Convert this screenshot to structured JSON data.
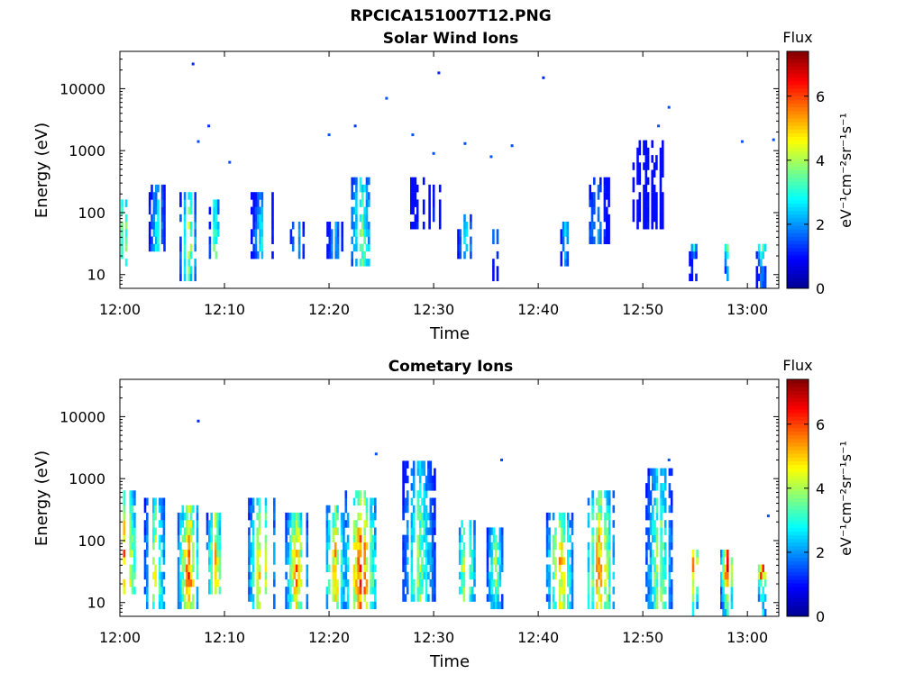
{
  "figure": {
    "title": "RPCICA151007T12.PNG"
  },
  "colors": {
    "colormap": [
      "#00008f",
      "#0000ff",
      "#0080ff",
      "#00ffff",
      "#80ff80",
      "#ffff00",
      "#ff8000",
      "#ff0000",
      "#800000"
    ]
  },
  "chart_data": [
    {
      "type": "heatmap",
      "title": "Solar Wind Ions",
      "xlabel": "Time",
      "ylabel": "Energy (eV)",
      "xlim": [
        "12:00",
        "13:03"
      ],
      "xticks": [
        "12:00",
        "12:10",
        "12:20",
        "12:30",
        "12:40",
        "12:50",
        "13:00"
      ],
      "y_scale": "log",
      "ylim": [
        6,
        40000
      ],
      "yticks": [
        "10",
        "100",
        "1000",
        "10000"
      ],
      "colorbar": {
        "label": "Flux",
        "unit": "eV⁻¹cm⁻²sr⁻¹s⁻¹",
        "range": [
          0,
          7.4
        ],
        "ticks": [
          "0",
          "2",
          "4",
          "6"
        ]
      },
      "bursts": [
        {
          "t": 0.3,
          "w": 1.2,
          "emin": 12,
          "emax": 180,
          "peak": 4.8
        },
        {
          "t": 3.5,
          "w": 1.5,
          "emin": 25,
          "emax": 280,
          "peak": 3.2
        },
        {
          "t": 6.5,
          "w": 1.6,
          "emin": 8,
          "emax": 200,
          "peak": 4.5
        },
        {
          "t": 9.0,
          "w": 1.0,
          "emin": 20,
          "emax": 180,
          "peak": 4.0
        },
        {
          "t": 13.5,
          "w": 2.0,
          "emin": 20,
          "emax": 200,
          "peak": 3.0
        },
        {
          "t": 16.8,
          "w": 1.5,
          "emin": 20,
          "emax": 70,
          "peak": 2.7
        },
        {
          "t": 20.5,
          "w": 1.5,
          "emin": 20,
          "emax": 70,
          "peak": 2.7
        },
        {
          "t": 23.0,
          "w": 2.2,
          "emin": 15,
          "emax": 400,
          "peak": 4.0
        },
        {
          "t": 28.5,
          "w": 1.5,
          "emin": 60,
          "emax": 400,
          "peak": 1.5
        },
        {
          "t": 30.0,
          "w": 1.0,
          "emin": 60,
          "emax": 300,
          "peak": 1.5
        },
        {
          "t": 33.0,
          "w": 1.5,
          "emin": 20,
          "emax": 100,
          "peak": 3.0
        },
        {
          "t": 35.8,
          "w": 0.8,
          "emin": 7,
          "emax": 50,
          "peak": 2.5
        },
        {
          "t": 42.5,
          "w": 0.8,
          "emin": 15,
          "emax": 70,
          "peak": 3.0
        },
        {
          "t": 45.5,
          "w": 2.5,
          "emin": 30,
          "emax": 350,
          "peak": 2.3
        },
        {
          "t": 50.5,
          "w": 3.0,
          "emin": 60,
          "emax": 1500,
          "peak": 1.2
        },
        {
          "t": 54.8,
          "w": 0.8,
          "emin": 8,
          "emax": 30,
          "peak": 3.5
        },
        {
          "t": 58.0,
          "w": 0.8,
          "emin": 8,
          "emax": 35,
          "peak": 4.8
        },
        {
          "t": 61.3,
          "w": 1.0,
          "emin": 6,
          "emax": 35,
          "peak": 4.8
        }
      ],
      "points": [
        {
          "t": 7.0,
          "e": 25000,
          "v": 1.2
        },
        {
          "t": 30.5,
          "e": 18000,
          "v": 1.2
        },
        {
          "t": 40.5,
          "e": 15000,
          "v": 1.2
        },
        {
          "t": 25.5,
          "e": 7000,
          "v": 1.5
        },
        {
          "t": 52.5,
          "e": 5000,
          "v": 1.5
        },
        {
          "t": 8.5,
          "e": 2500,
          "v": 1.3
        },
        {
          "t": 22.5,
          "e": 2500,
          "v": 1.3
        },
        {
          "t": 51.5,
          "e": 2500,
          "v": 1.5
        },
        {
          "t": 20.0,
          "e": 1800,
          "v": 1.5
        },
        {
          "t": 28.0,
          "e": 1800,
          "v": 1.5
        },
        {
          "t": 7.5,
          "e": 1400,
          "v": 1.5
        },
        {
          "t": 33.0,
          "e": 1300,
          "v": 1.5
        },
        {
          "t": 37.5,
          "e": 1200,
          "v": 1.5
        },
        {
          "t": 59.5,
          "e": 1400,
          "v": 1.5
        },
        {
          "t": 62.5,
          "e": 1500,
          "v": 1.5
        },
        {
          "t": 35.5,
          "e": 800,
          "v": 1.5
        },
        {
          "t": 30.0,
          "e": 900,
          "v": 1.5
        },
        {
          "t": 10.5,
          "e": 650,
          "v": 1.5
        }
      ]
    },
    {
      "type": "heatmap",
      "title": "Cometary Ions",
      "xlabel": "Time",
      "ylabel": "Energy (eV)",
      "xlim": [
        "12:00",
        "13:03"
      ],
      "xticks": [
        "12:00",
        "12:10",
        "12:20",
        "12:30",
        "12:40",
        "12:50",
        "13:00"
      ],
      "y_scale": "log",
      "ylim": [
        6,
        40000
      ],
      "yticks": [
        "10",
        "100",
        "1000",
        "10000"
      ],
      "colorbar": {
        "label": "Flux",
        "unit": "eV⁻¹cm⁻²sr⁻¹s⁻¹",
        "range": [
          0,
          7.4
        ],
        "ticks": [
          "0",
          "2",
          "4",
          "6"
        ]
      },
      "bursts": [
        {
          "t": 0.5,
          "w": 2.0,
          "emin": 12,
          "emax": 600,
          "peak": 6.8
        },
        {
          "t": 3.3,
          "w": 2.0,
          "emin": 7,
          "emax": 500,
          "peak": 4.8
        },
        {
          "t": 6.5,
          "w": 2.0,
          "emin": 7,
          "emax": 400,
          "peak": 6.2
        },
        {
          "t": 9.0,
          "w": 1.5,
          "emin": 12,
          "emax": 300,
          "peak": 5.8
        },
        {
          "t": 13.5,
          "w": 2.5,
          "emin": 7,
          "emax": 500,
          "peak": 5.5
        },
        {
          "t": 16.8,
          "w": 2.0,
          "emin": 7,
          "emax": 300,
          "peak": 5.8
        },
        {
          "t": 20.5,
          "w": 2.0,
          "emin": 8,
          "emax": 400,
          "peak": 5.5
        },
        {
          "t": 23.0,
          "w": 3.0,
          "emin": 8,
          "emax": 600,
          "peak": 6.5
        },
        {
          "t": 28.5,
          "w": 3.0,
          "emin": 10,
          "emax": 2000,
          "peak": 4.2
        },
        {
          "t": 33.0,
          "w": 2.0,
          "emin": 10,
          "emax": 200,
          "peak": 5.0
        },
        {
          "t": 35.8,
          "w": 1.5,
          "emin": 7,
          "emax": 150,
          "peak": 4.5
        },
        {
          "t": 42.0,
          "w": 2.5,
          "emin": 7,
          "emax": 300,
          "peak": 5.5
        },
        {
          "t": 45.8,
          "w": 3.0,
          "emin": 8,
          "emax": 600,
          "peak": 5.8
        },
        {
          "t": 51.5,
          "w": 2.5,
          "emin": 8,
          "emax": 1500,
          "peak": 4.5
        },
        {
          "t": 54.8,
          "w": 1.0,
          "emin": 6,
          "emax": 80,
          "peak": 6.5
        },
        {
          "t": 58.0,
          "w": 1.2,
          "emin": 6,
          "emax": 80,
          "peak": 6.8
        },
        {
          "t": 61.3,
          "w": 1.0,
          "emin": 6,
          "emax": 40,
          "peak": 7.0
        }
      ],
      "points": [
        {
          "t": 7.5,
          "e": 8500,
          "v": 1.2
        },
        {
          "t": 24.5,
          "e": 2500,
          "v": 1.5
        },
        {
          "t": 36.5,
          "e": 2000,
          "v": 1.5
        },
        {
          "t": 52.5,
          "e": 2000,
          "v": 1.5
        },
        {
          "t": 62.0,
          "e": 250,
          "v": 1.5
        }
      ]
    }
  ]
}
